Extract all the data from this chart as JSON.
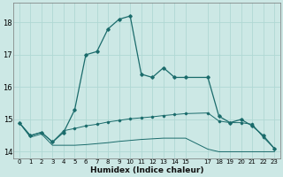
{
  "xlabel": "Humidex (Indice chaleur)",
  "bg_color": "#cce8e5",
  "grid_color": "#b0d8d4",
  "line_color": "#1a6b6b",
  "ylim": [
    13.8,
    18.6
  ],
  "xlim": [
    -0.5,
    23.5
  ],
  "yticks": [
    14,
    15,
    16,
    17,
    18
  ],
  "xticks": [
    0,
    1,
    2,
    3,
    4,
    5,
    6,
    7,
    8,
    9,
    10,
    11,
    12,
    13,
    14,
    15,
    17,
    18,
    19,
    20,
    21,
    22,
    23
  ],
  "xtick_labels": [
    "0",
    "1",
    "2",
    "3",
    "4",
    "5",
    "6",
    "7",
    "8",
    "9",
    "10",
    "11",
    "12",
    "13",
    "14",
    "15",
    "17",
    "18",
    "19",
    "20",
    "21",
    "22",
    "23"
  ],
  "series1_x": [
    0,
    1,
    2,
    3,
    4,
    5,
    6,
    7,
    8,
    9,
    10,
    11,
    12,
    13,
    14,
    15,
    17,
    18,
    19,
    20,
    21,
    22,
    23
  ],
  "series1_y": [
    14.9,
    14.5,
    14.6,
    14.3,
    14.6,
    15.3,
    17.0,
    17.1,
    17.8,
    18.1,
    18.2,
    16.4,
    16.3,
    16.6,
    16.3,
    16.3,
    16.3,
    15.1,
    14.9,
    15.0,
    14.8,
    14.5,
    14.1
  ],
  "series2_x": [
    0,
    1,
    2,
    3,
    4,
    5,
    6,
    7,
    8,
    9,
    10,
    11,
    12,
    13,
    14,
    15,
    17,
    18,
    19,
    20,
    21,
    22,
    23
  ],
  "series2_y": [
    14.9,
    14.5,
    14.6,
    14.3,
    14.65,
    14.72,
    14.8,
    14.85,
    14.92,
    14.97,
    15.02,
    15.05,
    15.08,
    15.12,
    15.15,
    15.18,
    15.2,
    14.95,
    14.9,
    14.9,
    14.85,
    14.45,
    14.1
  ],
  "series3_x": [
    0,
    1,
    2,
    3,
    4,
    5,
    6,
    7,
    8,
    9,
    10,
    11,
    12,
    13,
    14,
    15,
    17,
    18,
    19,
    20,
    21,
    22,
    23
  ],
  "series3_y": [
    14.9,
    14.45,
    14.55,
    14.2,
    14.2,
    14.2,
    14.22,
    14.25,
    14.28,
    14.32,
    14.35,
    14.38,
    14.4,
    14.42,
    14.42,
    14.42,
    14.08,
    14.0,
    14.0,
    14.0,
    14.0,
    14.0,
    14.0
  ]
}
